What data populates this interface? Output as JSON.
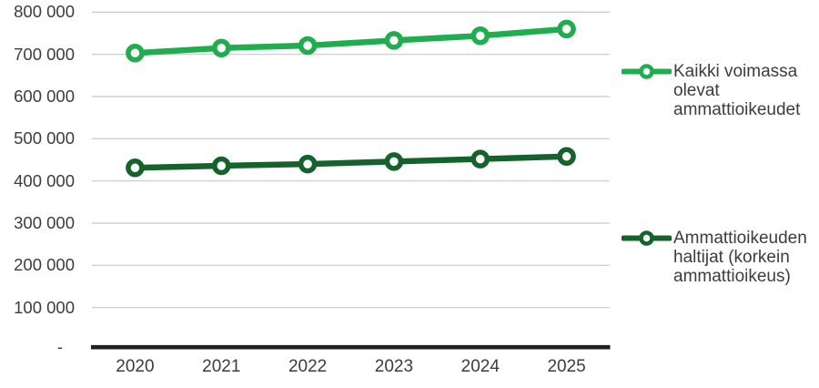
{
  "chart_data": {
    "type": "line",
    "categories": [
      "2020",
      "2021",
      "2022",
      "2023",
      "2024",
      "2025"
    ],
    "series": [
      {
        "name": "Kaikki voimassa olevat ammattioikeudet",
        "values": [
          703000,
          715000,
          721000,
          733000,
          744000,
          760000
        ],
        "color": "#1FAD4F"
      },
      {
        "name": "Ammattioikeuden haltijat (korkein ammattioikeus)",
        "values": [
          431000,
          436000,
          440000,
          446000,
          452000,
          458000
        ],
        "color": "#15622D"
      }
    ],
    "xlabel": "",
    "ylabel": "",
    "ylim": [
      0,
      800000
    ],
    "ytick_step": 100000,
    "ytick_labels": [
      "-",
      "100 000",
      "200 000",
      "300 000",
      "400 000",
      "500 000",
      "600 000",
      "700 000",
      "800 000"
    ],
    "grid": true,
    "legend_position": "right",
    "colors": {
      "gridline": "#c8c8c9",
      "axis_line": "#1f1f1f",
      "tick_text": "#3c3c3c",
      "background": "#ffffff"
    }
  }
}
